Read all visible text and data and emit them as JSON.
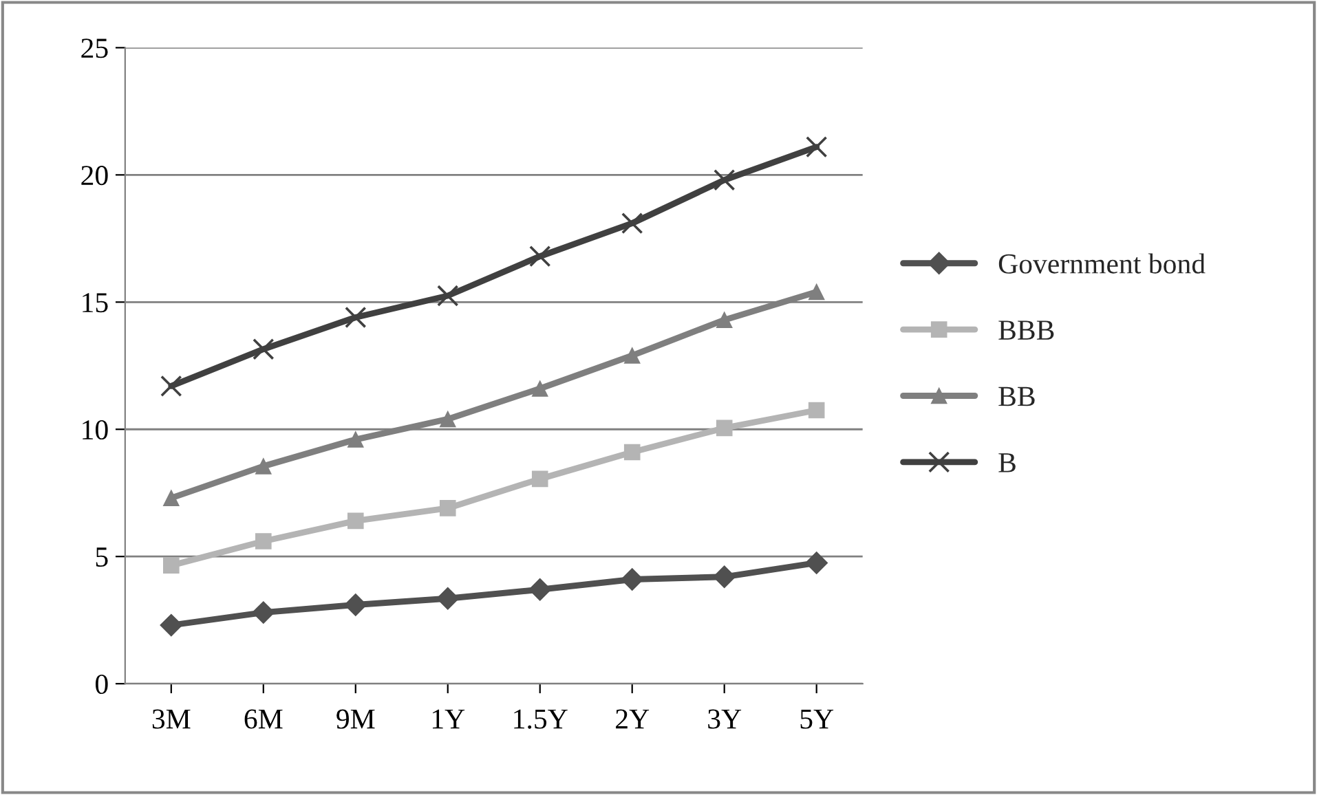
{
  "chart_data": {
    "type": "line",
    "categories": [
      "3M",
      "6M",
      "9M",
      "1Y",
      "1.5Y",
      "2Y",
      "3Y",
      "5Y"
    ],
    "series": [
      {
        "name": "Government bond",
        "color": "#505050",
        "marker": "diamond",
        "values": [
          2.3,
          2.8,
          3.1,
          3.35,
          3.7,
          4.1,
          4.2,
          4.75
        ]
      },
      {
        "name": "BBB",
        "color": "#b4b4b4",
        "marker": "square",
        "values": [
          4.65,
          5.6,
          6.4,
          6.9,
          8.05,
          9.1,
          10.05,
          10.75
        ]
      },
      {
        "name": "BB",
        "color": "#7f7f7f",
        "marker": "triangle",
        "values": [
          7.3,
          8.55,
          9.6,
          10.4,
          11.6,
          12.9,
          14.3,
          15.4
        ]
      },
      {
        "name": "B",
        "color": "#404040",
        "marker": "cross",
        "values": [
          11.7,
          13.15,
          14.4,
          15.25,
          16.8,
          18.1,
          19.8,
          21.1
        ]
      }
    ],
    "ylim": [
      0,
      25
    ],
    "yticks": [
      0,
      5,
      10,
      15,
      20,
      25
    ],
    "grid": "y",
    "legend": "right"
  }
}
